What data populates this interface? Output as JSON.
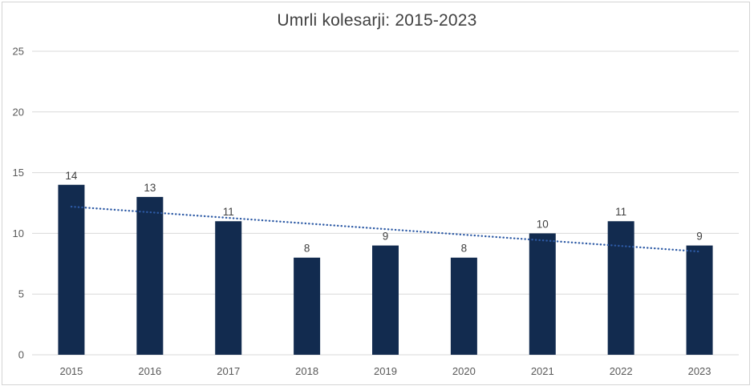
{
  "chart_data": {
    "type": "bar",
    "title": "Umrli kolesarji: 2015-2023",
    "xlabel": "",
    "ylabel": "",
    "categories": [
      "2015",
      "2016",
      "2017",
      "2018",
      "2019",
      "2020",
      "2021",
      "2022",
      "2023"
    ],
    "values": [
      14,
      13,
      11,
      8,
      9,
      8,
      10,
      11,
      9
    ],
    "y_ticks": [
      0,
      5,
      10,
      15,
      20,
      25
    ],
    "ylim": [
      0,
      25
    ],
    "grid": true,
    "legend": "none",
    "bar_color": "#122B4F",
    "trendline": {
      "type": "linear",
      "style": "dotted",
      "color": "#2D5AA5",
      "start_value": 12.2,
      "end_value": 8.5
    },
    "colors": {
      "gridline": "#D9D9D9",
      "axis_label": "#595959",
      "data_label": "#404040",
      "title": "#404040",
      "frame_border": "#D4D4D4",
      "background": "#FFFFFF"
    }
  }
}
